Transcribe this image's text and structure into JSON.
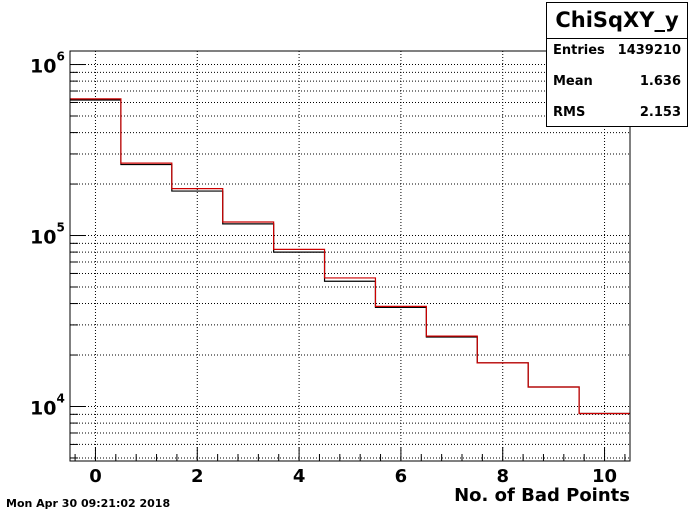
{
  "chart_data": {
    "type": "histogram",
    "title": "",
    "xlabel": "No. of Bad Points",
    "ylabel": "",
    "xlim": [
      -0.5,
      10.5
    ],
    "ylim": [
      4800,
      1200000
    ],
    "yscale": "log",
    "grid": true,
    "bin_width": 1,
    "x_ticks": [
      0,
      2,
      4,
      6,
      8,
      10
    ],
    "y_ticks": [
      {
        "value": 10000,
        "base": "10",
        "exp": "4"
      },
      {
        "value": 100000,
        "base": "10",
        "exp": "5"
      },
      {
        "value": 1000000,
        "base": "10",
        "exp": "6"
      }
    ],
    "series": [
      {
        "color": "#000000",
        "x": [
          0,
          1,
          2,
          3,
          4,
          5,
          6,
          7,
          8,
          9,
          10
        ],
        "values": [
          620000,
          260000,
          182000,
          117000,
          80000,
          54000,
          38000,
          25500,
          18000,
          13000,
          9100
        ]
      },
      {
        "color": "#cc0000",
        "x": [
          0,
          1,
          2,
          3,
          4,
          5,
          6,
          7,
          8,
          9,
          10
        ],
        "values": [
          630000,
          265000,
          188000,
          120000,
          83000,
          56500,
          38500,
          25800,
          18000,
          13000,
          9100
        ]
      }
    ],
    "stats": {
      "title": "ChiSqXY_y",
      "rows": [
        {
          "label": "Entries",
          "value": "1439210"
        },
        {
          "label": "Mean",
          "value": "1.636"
        },
        {
          "label": "RMS",
          "value": "2.153"
        }
      ]
    }
  },
  "timestamp": "Mon Apr 30 09:21:02 2018"
}
